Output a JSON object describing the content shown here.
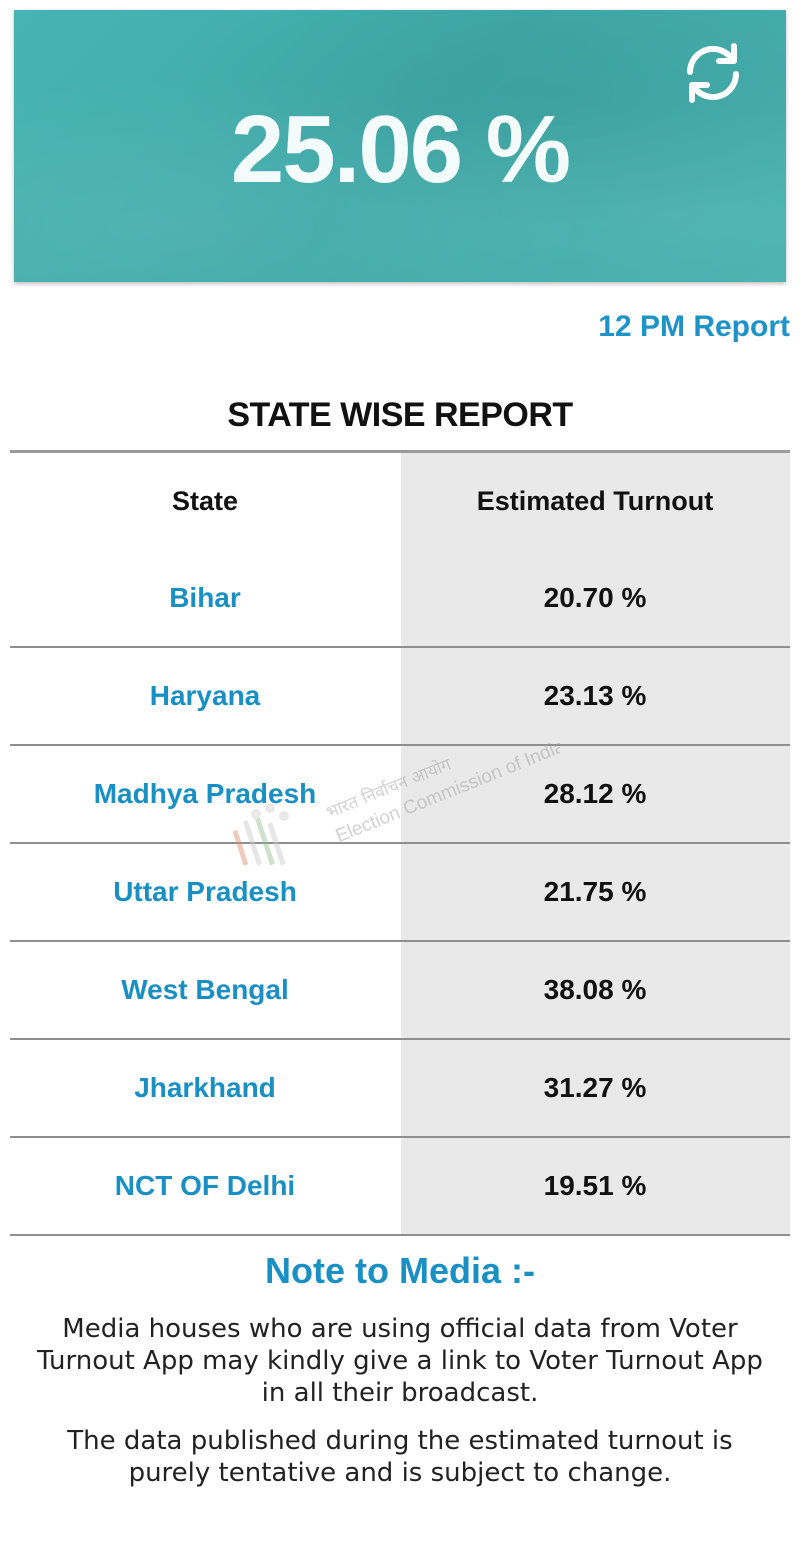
{
  "banner": {
    "turnout": "25.06 %",
    "refresh_icon": "refresh-icon"
  },
  "report_link": "12 PM Report",
  "section_title": "STATE WISE REPORT",
  "table": {
    "headers": [
      "State",
      "Estimated Turnout"
    ],
    "rows": [
      {
        "state": "Bihar",
        "turnout": "20.70 %"
      },
      {
        "state": "Haryana",
        "turnout": "23.13 %"
      },
      {
        "state": "Madhya Pradesh",
        "turnout": "28.12 %"
      },
      {
        "state": "Uttar Pradesh",
        "turnout": "21.75 %"
      },
      {
        "state": "West Bengal",
        "turnout": "38.08 %"
      },
      {
        "state": "Jharkhand",
        "turnout": "31.27 %"
      },
      {
        "state": "NCT OF Delhi",
        "turnout": "19.51 %"
      }
    ]
  },
  "watermark": {
    "hindi": "भारत निर्वाचन आयोग",
    "english": "Election Commission of India"
  },
  "note": {
    "title": "Note to Media :-",
    "paragraphs": [
      "Media houses who are using official data from Voter Turnout App may kindly give a link to Voter Turnout App in all their broadcast.",
      "The data published during the estimated turnout is purely tentative and is subject to change."
    ]
  },
  "colors": {
    "banner": "#44afae",
    "accent": "#1a8fc4",
    "shade": "#e9e9e9"
  }
}
